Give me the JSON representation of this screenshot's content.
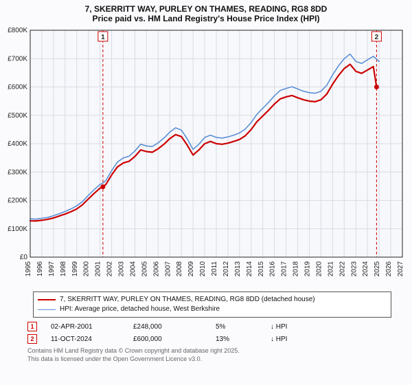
{
  "title_line1": "7, SKERRITT WAY, PURLEY ON THAMES, READING, RG8 8DD",
  "title_line2": "Price paid vs. HM Land Registry's House Price Index (HPI)",
  "chart": {
    "type": "line",
    "background_color": "#f7f8fb",
    "outer_background": "#fbfbfd",
    "grid_color": "#d9dbe4",
    "axis_color": "#222222",
    "xlim": [
      1995,
      2027
    ],
    "ylim": [
      0,
      800000
    ],
    "ytick_step": 100000,
    "ytick_labels": [
      "£0",
      "£100K",
      "£200K",
      "£300K",
      "£400K",
      "£500K",
      "£600K",
      "£700K",
      "£800K"
    ],
    "xtick_step": 1,
    "xtick_labels": [
      "1995",
      "1996",
      "1997",
      "1998",
      "1999",
      "2000",
      "2001",
      "2002",
      "2003",
      "2004",
      "2005",
      "2006",
      "2007",
      "2008",
      "2009",
      "2010",
      "2011",
      "2012",
      "2013",
      "2014",
      "2015",
      "2016",
      "2017",
      "2018",
      "2019",
      "2020",
      "2021",
      "2022",
      "2023",
      "2024",
      "2025",
      "2026",
      "2027"
    ],
    "label_fontsize": 10,
    "series": [
      {
        "name": "property",
        "label": "7, SKERRITT WAY, PURLEY ON THAMES, READING, RG8 8DD (detached house)",
        "color": "#cc0000",
        "line_width": 2.2,
        "data": [
          [
            1995.0,
            128000
          ],
          [
            1995.5,
            127500
          ],
          [
            1996.0,
            130000
          ],
          [
            1996.5,
            133000
          ],
          [
            1997.0,
            138000
          ],
          [
            1997.5,
            145000
          ],
          [
            1998.0,
            152000
          ],
          [
            1998.5,
            160000
          ],
          [
            1999.0,
            170000
          ],
          [
            1999.5,
            185000
          ],
          [
            2000.0,
            205000
          ],
          [
            2000.5,
            225000
          ],
          [
            2001.0,
            243000
          ],
          [
            2001.25,
            248000
          ],
          [
            2001.5,
            256000
          ],
          [
            2002.0,
            290000
          ],
          [
            2002.5,
            318000
          ],
          [
            2003.0,
            332000
          ],
          [
            2003.5,
            338000
          ],
          [
            2004.0,
            355000
          ],
          [
            2004.5,
            378000
          ],
          [
            2005.0,
            372000
          ],
          [
            2005.5,
            370000
          ],
          [
            2006.0,
            382000
          ],
          [
            2006.5,
            398000
          ],
          [
            2007.0,
            418000
          ],
          [
            2007.5,
            432000
          ],
          [
            2008.0,
            425000
          ],
          [
            2008.5,
            395000
          ],
          [
            2009.0,
            360000
          ],
          [
            2009.5,
            378000
          ],
          [
            2010.0,
            400000
          ],
          [
            2010.5,
            408000
          ],
          [
            2011.0,
            400000
          ],
          [
            2011.5,
            398000
          ],
          [
            2012.0,
            402000
          ],
          [
            2012.5,
            408000
          ],
          [
            2013.0,
            415000
          ],
          [
            2013.5,
            428000
          ],
          [
            2014.0,
            450000
          ],
          [
            2014.5,
            478000
          ],
          [
            2015.0,
            498000
          ],
          [
            2015.5,
            518000
          ],
          [
            2016.0,
            540000
          ],
          [
            2016.5,
            558000
          ],
          [
            2017.0,
            565000
          ],
          [
            2017.5,
            570000
          ],
          [
            2018.0,
            562000
          ],
          [
            2018.5,
            555000
          ],
          [
            2019.0,
            550000
          ],
          [
            2019.5,
            548000
          ],
          [
            2020.0,
            555000
          ],
          [
            2020.5,
            575000
          ],
          [
            2021.0,
            610000
          ],
          [
            2021.5,
            640000
          ],
          [
            2022.0,
            665000
          ],
          [
            2022.5,
            680000
          ],
          [
            2023.0,
            655000
          ],
          [
            2023.5,
            648000
          ],
          [
            2024.0,
            660000
          ],
          [
            2024.5,
            672000
          ],
          [
            2024.78,
            600000
          ]
        ]
      },
      {
        "name": "hpi",
        "label": "HPI: Average price, detached house, West Berkshire",
        "color": "#5b8fd6",
        "line_width": 1.6,
        "data": [
          [
            1995.0,
            135000
          ],
          [
            1995.5,
            134000
          ],
          [
            1996.0,
            137000
          ],
          [
            1996.5,
            140000
          ],
          [
            1997.0,
            146000
          ],
          [
            1997.5,
            153000
          ],
          [
            1998.0,
            161000
          ],
          [
            1998.5,
            170000
          ],
          [
            1999.0,
            181000
          ],
          [
            1999.5,
            196000
          ],
          [
            2000.0,
            218000
          ],
          [
            2000.5,
            238000
          ],
          [
            2001.0,
            256000
          ],
          [
            2001.25,
            261000
          ],
          [
            2001.5,
            270000
          ],
          [
            2002.0,
            305000
          ],
          [
            2002.5,
            335000
          ],
          [
            2003.0,
            350000
          ],
          [
            2003.5,
            356000
          ],
          [
            2004.0,
            374000
          ],
          [
            2004.5,
            398000
          ],
          [
            2005.0,
            392000
          ],
          [
            2005.5,
            390000
          ],
          [
            2006.0,
            403000
          ],
          [
            2006.5,
            420000
          ],
          [
            2007.0,
            441000
          ],
          [
            2007.5,
            456000
          ],
          [
            2008.0,
            448000
          ],
          [
            2008.5,
            417000
          ],
          [
            2009.0,
            380000
          ],
          [
            2009.5,
            398000
          ],
          [
            2010.0,
            422000
          ],
          [
            2010.5,
            430000
          ],
          [
            2011.0,
            422000
          ],
          [
            2011.5,
            420000
          ],
          [
            2012.0,
            424000
          ],
          [
            2012.5,
            430000
          ],
          [
            2013.0,
            438000
          ],
          [
            2013.5,
            452000
          ],
          [
            2014.0,
            475000
          ],
          [
            2014.5,
            504000
          ],
          [
            2015.0,
            525000
          ],
          [
            2015.5,
            546000
          ],
          [
            2016.0,
            569000
          ],
          [
            2016.5,
            588000
          ],
          [
            2017.0,
            595000
          ],
          [
            2017.5,
            601000
          ],
          [
            2018.0,
            593000
          ],
          [
            2018.5,
            585000
          ],
          [
            2019.0,
            580000
          ],
          [
            2019.5,
            578000
          ],
          [
            2020.0,
            585000
          ],
          [
            2020.5,
            606000
          ],
          [
            2021.0,
            643000
          ],
          [
            2021.5,
            674000
          ],
          [
            2022.0,
            700000
          ],
          [
            2022.5,
            716000
          ],
          [
            2023.0,
            690000
          ],
          [
            2023.5,
            683000
          ],
          [
            2024.0,
            696000
          ],
          [
            2024.5,
            708000
          ],
          [
            2025.0,
            690000
          ]
        ]
      }
    ],
    "markers": [
      {
        "n": "1",
        "x": 2001.25,
        "y": 248000,
        "color": "#cc0000"
      },
      {
        "n": "2",
        "x": 2024.78,
        "y": 600000,
        "color": "#cc0000"
      }
    ],
    "marker_vline_color": "#cc0000",
    "marker_vline_dash": "4,3"
  },
  "legend": {
    "series1_label": "7, SKERRITT WAY, PURLEY ON THAMES, READING, RG8 8DD (detached house)",
    "series1_color": "#cc0000",
    "series1_width": 2.2,
    "series2_label": "HPI: Average price, detached house, West Berkshire",
    "series2_color": "#5b8fd6",
    "series2_width": 1.6
  },
  "marker_rows": [
    {
      "n": "1",
      "date": "02-APR-2001",
      "price": "£248,000",
      "pct": "5%",
      "note": "↓ HPI"
    },
    {
      "n": "2",
      "date": "11-OCT-2024",
      "price": "£600,000",
      "pct": "13%",
      "note": "↓ HPI"
    }
  ],
  "footer_line1": "Contains HM Land Registry data © Crown copyright and database right 2025.",
  "footer_line2": "This data is licensed under the Open Government Licence v3.0."
}
